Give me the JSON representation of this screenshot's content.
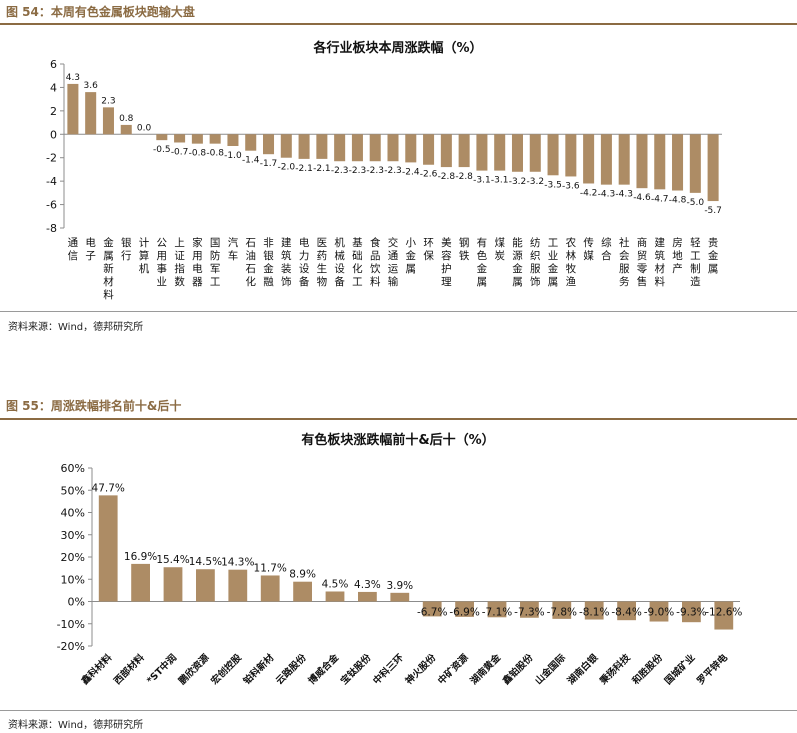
{
  "figures": [
    {
      "heading": "图 54：本周有色金属板块跑输大盘",
      "source": "资料来源：Wind，德邦研究所"
    },
    {
      "heading": "图 55：周涨跌幅排名前十&后十",
      "source": "资料来源：Wind，德邦研究所"
    }
  ],
  "colors": {
    "bar": "#ad8c65",
    "accent": "#8b6b43",
    "axis": "#8c8c8c"
  },
  "chart_data": [
    {
      "type": "bar",
      "title": "各行业板块本周涨跌幅（%）",
      "xlabel": "",
      "ylabel": "",
      "ylim": [
        -8,
        6
      ],
      "yticks": [
        6,
        4,
        2,
        0,
        -2,
        -4,
        -6,
        -8
      ],
      "ytick_labels": [
        "6",
        "4",
        "2",
        "0",
        "-2",
        "-4",
        "-6",
        "-8"
      ],
      "grid": false,
      "categories": [
        "通信",
        "电子",
        "金属新材料",
        "银行",
        "计算机",
        "公用事业",
        "上证指数",
        "家用电器",
        "国防军工",
        "汽车",
        "石油石化",
        "非银金融",
        "建筑装饰",
        "电力设备",
        "医药生物",
        "机械设备",
        "基础化工",
        "食品饮料",
        "交通运输",
        "小金属",
        "环保",
        "美容护理",
        "钢铁",
        "有色金属",
        "煤炭",
        "能源金属",
        "纺织服饰",
        "工业金属",
        "农林牧渔",
        "传媒",
        "综合",
        "社会服务",
        "商贸零售",
        "建筑材料",
        "房地产",
        "轻工制造",
        "贵金属"
      ],
      "values": [
        4.3,
        3.6,
        2.3,
        0.8,
        0.0,
        -0.5,
        -0.7,
        -0.8,
        -0.8,
        -1.0,
        -1.4,
        -1.7,
        -2.0,
        -2.1,
        -2.1,
        -2.3,
        -2.3,
        -2.3,
        -2.3,
        -2.4,
        -2.6,
        -2.8,
        -2.8,
        -3.1,
        -3.1,
        -3.2,
        -3.2,
        -3.5,
        -3.6,
        -4.2,
        -4.3,
        -4.3,
        -4.6,
        -4.7,
        -4.8,
        -5.0,
        -5.7
      ],
      "labels": [
        "4.3",
        "3.6",
        "2.3",
        "0.8",
        "0.0",
        "-0.5",
        "-0.7",
        "-0.8",
        "-0.8",
        "-1.0",
        "-1.4",
        "-1.7",
        "-2.0",
        "-2.1",
        "-2.1",
        "-2.3",
        "-2.3",
        "-2.3",
        "-2.3",
        "-2.4",
        "-2.6",
        "-2.8",
        "-2.8",
        "-3.1",
        "-3.1",
        "-3.2",
        "-3.2",
        "-3.5",
        "-3.6",
        "-4.2",
        "-4.3",
        "-4.3",
        "-4.6",
        "-4.7",
        "-4.8",
        "-5.0",
        "-5.7"
      ]
    },
    {
      "type": "bar",
      "title": "有色板块涨跌幅前十&后十（%）",
      "xlabel": "",
      "ylabel": "",
      "ylim": [
        -20,
        60
      ],
      "yticks": [
        60,
        50,
        40,
        30,
        20,
        10,
        0,
        -10,
        -20
      ],
      "ytick_labels": [
        "60%",
        "50%",
        "40%",
        "30%",
        "20%",
        "10%",
        "0%",
        "-10%",
        "-20%"
      ],
      "grid": false,
      "categories": [
        "鑫科材料",
        "西部材料",
        "*ST中润",
        "鹏欣资源",
        "宏创控股",
        "铂科新材",
        "云路股份",
        "博威合金",
        "宝钛股份",
        "中科三环",
        "神火股份",
        "中矿资源",
        "湖南黄金",
        "鑫铂股份",
        "山金国际",
        "湖南白银",
        "秉扬科技",
        "和胜股份",
        "国城矿业",
        "罗平锌电"
      ],
      "values": [
        47.7,
        16.9,
        15.4,
        14.5,
        14.3,
        11.7,
        8.9,
        4.5,
        4.3,
        3.9,
        -6.7,
        -6.9,
        -7.1,
        -7.3,
        -7.8,
        -8.1,
        -8.4,
        -9.0,
        -9.3,
        -12.6
      ],
      "labels": [
        "47.7%",
        "16.9%",
        "15.4%",
        "14.5%",
        "14.3%",
        "11.7%",
        "8.9%",
        "4.5%",
        "4.3%",
        "3.9%",
        "-6.7%",
        "-6.9%",
        "-7.1%",
        "-7.3%",
        "-7.8%",
        "-8.1%",
        "-8.4%",
        "-9.0%",
        "-9.3%",
        "-12.6%"
      ]
    }
  ]
}
